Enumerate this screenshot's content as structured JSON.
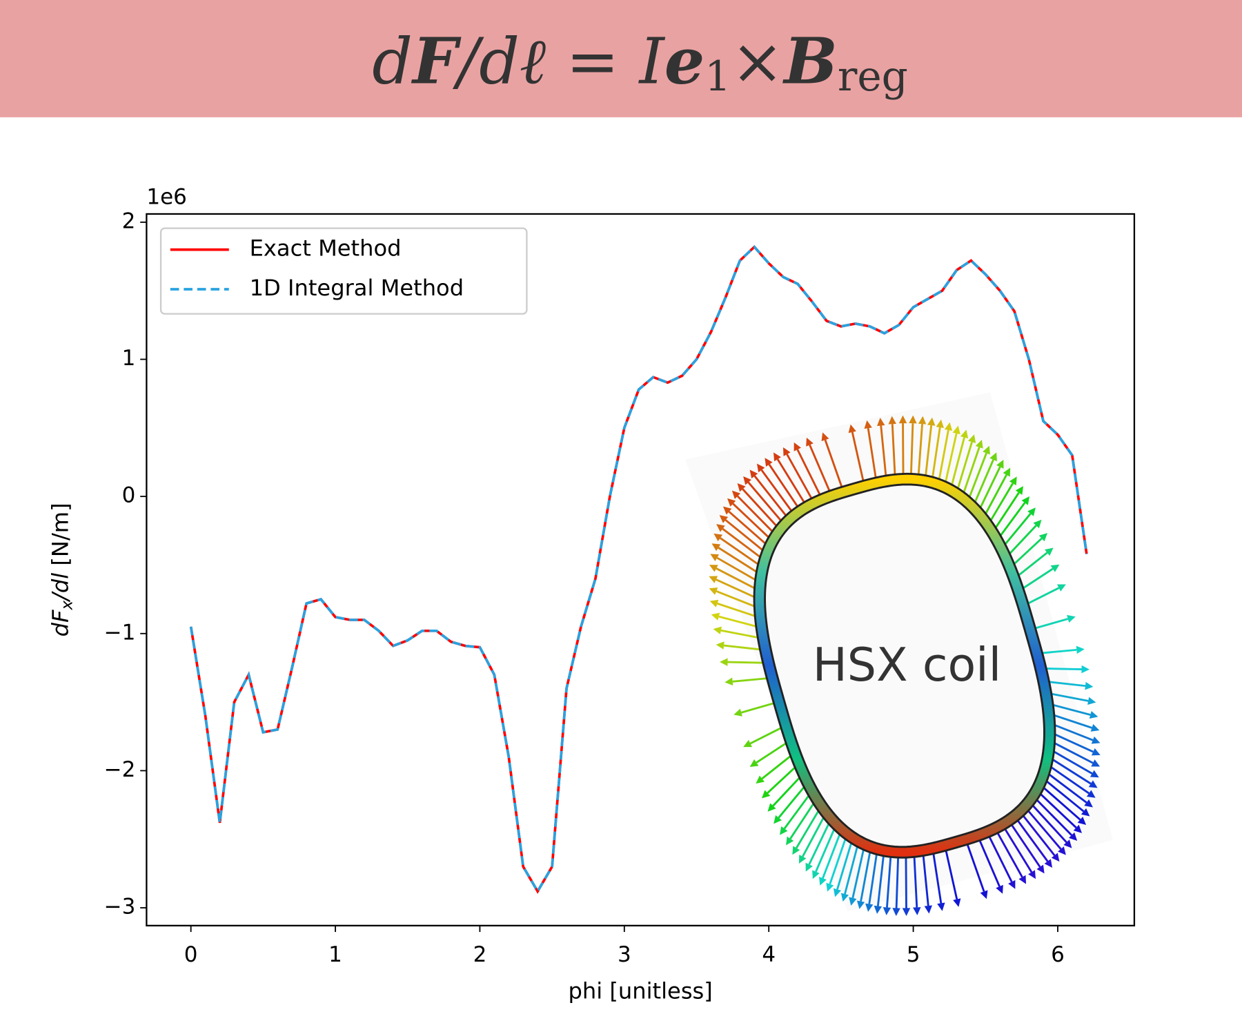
{
  "header": {
    "formula": [
      "d",
      "F",
      "/dℓ = I",
      "e",
      "1",
      "×",
      "B",
      "reg"
    ]
  },
  "inset_label": "HSX coil",
  "chart_data": {
    "type": "line",
    "x_label": "phi [unitless]",
    "y_label": [
      "dF",
      "x",
      "/dl",
      " [N/m]"
    ],
    "y_offset_label": "1e6",
    "x": [
      0,
      0.1,
      0.2,
      0.3,
      0.4,
      0.5,
      0.6,
      0.7,
      0.8,
      0.9,
      1.0,
      1.1,
      1.2,
      1.3,
      1.4,
      1.5,
      1.6,
      1.7,
      1.8,
      1.9,
      2.0,
      2.1,
      2.2,
      2.3,
      2.4,
      2.5,
      2.6,
      2.7,
      2.8,
      2.9,
      3.0,
      3.1,
      3.2,
      3.3,
      3.4,
      3.5,
      3.6,
      3.7,
      3.8,
      3.9,
      4.0,
      4.1,
      4.2,
      4.3,
      4.4,
      4.5,
      4.6,
      4.7,
      4.8,
      4.9,
      5.0,
      5.1,
      5.2,
      5.3,
      5.4,
      5.5,
      5.6,
      5.7,
      5.8,
      5.9,
      6.0,
      6.1,
      6.2
    ],
    "series": [
      {
        "name": "Exact Method",
        "color": "#ff0000",
        "style": "solid",
        "values": [
          -0.95,
          -1.6,
          -2.38,
          -1.5,
          -1.3,
          -1.72,
          -1.7,
          -1.25,
          -0.78,
          -0.75,
          -0.88,
          -0.9,
          -0.9,
          -0.98,
          -1.09,
          -1.05,
          -0.98,
          -0.98,
          -1.06,
          -1.09,
          -1.1,
          -1.3,
          -1.9,
          -2.7,
          -2.88,
          -2.7,
          -1.4,
          -0.95,
          -0.6,
          0.0,
          0.5,
          0.78,
          0.87,
          0.83,
          0.88,
          1.0,
          1.2,
          1.45,
          1.72,
          1.82,
          1.7,
          1.6,
          1.55,
          1.42,
          1.28,
          1.24,
          1.26,
          1.24,
          1.19,
          1.25,
          1.38,
          1.44,
          1.5,
          1.65,
          1.72,
          1.62,
          1.5,
          1.35,
          1.0,
          0.55,
          0.45,
          0.3,
          -0.42
        ]
      },
      {
        "name": "1D Integral Method",
        "color": "#29a3e0",
        "style": "dashed",
        "values": [
          -0.95,
          -1.6,
          -2.38,
          -1.5,
          -1.3,
          -1.72,
          -1.7,
          -1.25,
          -0.78,
          -0.75,
          -0.88,
          -0.9,
          -0.9,
          -0.98,
          -1.09,
          -1.05,
          -0.98,
          -0.98,
          -1.06,
          -1.09,
          -1.1,
          -1.3,
          -1.9,
          -2.7,
          -2.88,
          -2.7,
          -1.4,
          -0.95,
          -0.6,
          0.0,
          0.5,
          0.78,
          0.87,
          0.83,
          0.88,
          1.0,
          1.2,
          1.45,
          1.72,
          1.82,
          1.7,
          1.6,
          1.55,
          1.42,
          1.28,
          1.24,
          1.26,
          1.24,
          1.19,
          1.25,
          1.38,
          1.44,
          1.5,
          1.65,
          1.72,
          1.62,
          1.5,
          1.35,
          1.0,
          0.55,
          0.45,
          0.3,
          -0.42
        ]
      }
    ],
    "xlim": [
      -0.307,
      6.53
    ],
    "ylim": [
      -3.13,
      2.06
    ],
    "xticks": [
      0,
      1,
      2,
      3,
      4,
      5,
      6
    ],
    "yticks": [
      -3,
      -2,
      -1,
      0,
      1,
      2
    ],
    "legend": "upper left",
    "grid": false
  }
}
